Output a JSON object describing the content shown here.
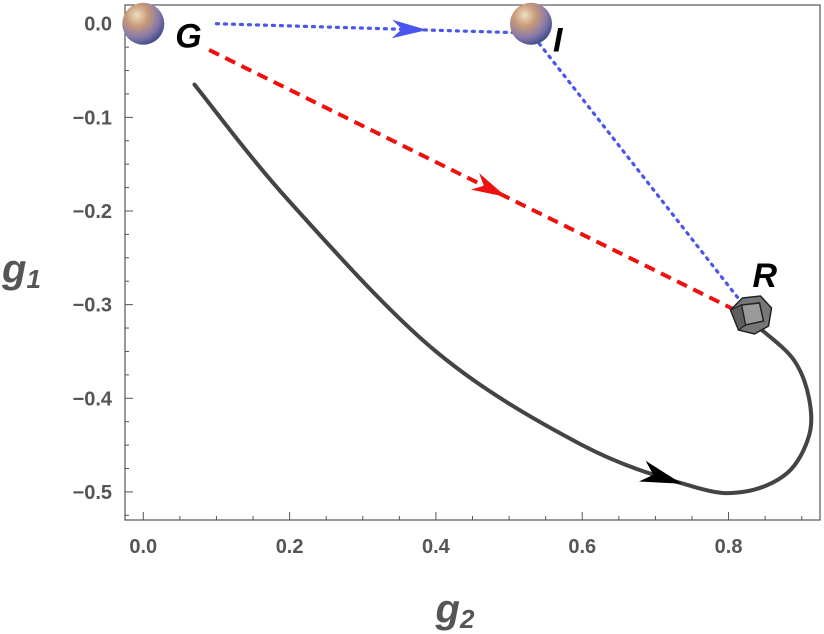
{
  "chart_data": {
    "type": "line",
    "xlabel": {
      "main": "g",
      "sub": "2"
    },
    "ylabel": {
      "main": "g",
      "sub": "1"
    },
    "xlim": [
      -0.025,
      0.925
    ],
    "ylim": [
      -0.53,
      0.02
    ],
    "xticks": [
      "0.0",
      "0.2",
      "0.4",
      "0.6",
      "0.8"
    ],
    "yticks": [
      "0.0",
      "−0.1",
      "−0.2",
      "−0.3",
      "−0.4",
      "−0.5"
    ],
    "grid": false,
    "points": [
      {
        "name": "G",
        "x": 0.0,
        "y": 0.0,
        "marker": "sphere"
      },
      {
        "name": "I",
        "x": 0.53,
        "y": 0.0,
        "marker": "sphere"
      },
      {
        "name": "R",
        "x": 0.83,
        "y": -0.31,
        "marker": "polyhedron"
      }
    ],
    "series": [
      {
        "style": "dotted",
        "color": "#4a55ee",
        "x": [
          0.1,
          0.53,
          0.82
        ],
        "y": [
          0.0,
          -0.01,
          -0.3
        ]
      },
      {
        "style": "dashed",
        "color": "#ee1111",
        "x": [
          0.09,
          0.82
        ],
        "y": [
          -0.028,
          -0.31
        ]
      },
      {
        "style": "solid",
        "color": "#444444",
        "x": [
          0.07,
          0.2,
          0.4,
          0.6,
          0.75,
          0.82,
          0.88,
          0.91,
          0.91,
          0.89,
          0.85,
          0.83
        ],
        "y": [
          -0.065,
          -0.19,
          -0.35,
          -0.45,
          -0.494,
          -0.5,
          -0.48,
          -0.44,
          -0.4,
          -0.36,
          -0.33,
          -0.32
        ]
      }
    ],
    "colors": {
      "axis": "#555555",
      "dotted_arrow": "#4a55ee",
      "dashed_arrow": "#ee1111",
      "solid_curve": "#444444",
      "solid_arrow": "#000000"
    }
  }
}
